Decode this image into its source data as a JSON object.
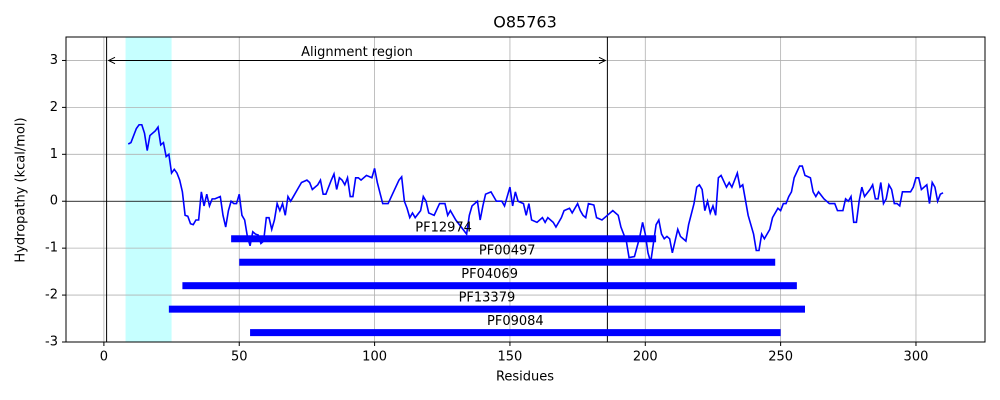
{
  "chart_data": {
    "type": "line",
    "title": "O85763",
    "x_label": "Residues",
    "y_label": "Hydropathy (kcal/mol)",
    "x": [
      9,
      10,
      12,
      13,
      14,
      15,
      16,
      17,
      19,
      20,
      21,
      22,
      23,
      24,
      25,
      26,
      27,
      28,
      29,
      30,
      31,
      32,
      33,
      34,
      35,
      36,
      37,
      38,
      39,
      40,
      41,
      43,
      44,
      45,
      46,
      47,
      48,
      49,
      50,
      51,
      52,
      53,
      54,
      55,
      56,
      57,
      58,
      59,
      60,
      61,
      62,
      63,
      64,
      65,
      66,
      67,
      68,
      69,
      70,
      72,
      73,
      75,
      76,
      77,
      79,
      80,
      81,
      82,
      84,
      85,
      86,
      87,
      88,
      89,
      90,
      91,
      92,
      93,
      94,
      95,
      97,
      99,
      100,
      101,
      103,
      105,
      107,
      109,
      110,
      111,
      112,
      113,
      114,
      115,
      117,
      118,
      119,
      120,
      122,
      124,
      126,
      127,
      128,
      130,
      132,
      134,
      135,
      136,
      138,
      139,
      140,
      141,
      143,
      145,
      147,
      148,
      150,
      151,
      152,
      153,
      155,
      156,
      157,
      158,
      160,
      162,
      163,
      164,
      166,
      167,
      169,
      170,
      172,
      173,
      175,
      176,
      177,
      178,
      179,
      181,
      182,
      184,
      186,
      188,
      190,
      191,
      193,
      194,
      196,
      198,
      199,
      200,
      201,
      202,
      203,
      204,
      205,
      206,
      207,
      208,
      209,
      210,
      212,
      213,
      214,
      215,
      216,
      218,
      219,
      220,
      221,
      222,
      223,
      224,
      225,
      226,
      227,
      228,
      230,
      231,
      232,
      233,
      234,
      235,
      236,
      238,
      239,
      240,
      241,
      242,
      243,
      244,
      246,
      247,
      249,
      250,
      251,
      252,
      253,
      254,
      255,
      257,
      258,
      259,
      261,
      262,
      263,
      264,
      266,
      268,
      270,
      271,
      273,
      274,
      275,
      276,
      277,
      278,
      279,
      280,
      281,
      283,
      284,
      285,
      286,
      287,
      288,
      289,
      290,
      291,
      292,
      293,
      294,
      295,
      297,
      298,
      299,
      300,
      301,
      302,
      304,
      305,
      306,
      307,
      308,
      309,
      310
    ],
    "series": [
      {
        "color": "#0000ff",
        "values": [
          1.22,
          1.25,
          1.55,
          1.63,
          1.63,
          1.45,
          1.08,
          1.4,
          1.5,
          1.58,
          1.2,
          1.25,
          0.95,
          1.0,
          0.6,
          0.68,
          0.6,
          0.45,
          0.2,
          -0.3,
          -0.32,
          -0.48,
          -0.5,
          -0.4,
          -0.4,
          0.2,
          -0.1,
          0.15,
          -0.1,
          0.05,
          0.05,
          0.1,
          -0.3,
          -0.55,
          -0.2,
          0.0,
          -0.05,
          -0.05,
          0.15,
          -0.3,
          -0.4,
          -0.75,
          -0.95,
          -0.65,
          -0.7,
          -0.72,
          -0.9,
          -0.85,
          -0.35,
          -0.35,
          -0.6,
          -0.4,
          -0.05,
          -0.2,
          -0.05,
          -0.3,
          0.1,
          0.0,
          0.1,
          0.3,
          0.4,
          0.45,
          0.4,
          0.25,
          0.35,
          0.45,
          0.15,
          0.15,
          0.45,
          0.58,
          0.25,
          0.5,
          0.45,
          0.35,
          0.5,
          0.1,
          0.1,
          0.5,
          0.5,
          0.45,
          0.55,
          0.5,
          0.7,
          0.4,
          -0.05,
          -0.05,
          0.2,
          0.45,
          0.52,
          0.0,
          -0.15,
          -0.35,
          -0.25,
          -0.35,
          -0.2,
          0.1,
          0.0,
          -0.25,
          -0.3,
          -0.05,
          -0.05,
          -0.3,
          -0.2,
          -0.4,
          -0.55,
          -0.7,
          -0.3,
          -0.1,
          0.0,
          -0.4,
          -0.1,
          0.15,
          0.2,
          0.0,
          0.0,
          -0.1,
          0.3,
          -0.1,
          0.2,
          0.0,
          -0.05,
          -0.3,
          -0.05,
          -0.4,
          -0.45,
          -0.35,
          -0.45,
          -0.35,
          -0.45,
          -0.55,
          -0.35,
          -0.2,
          -0.15,
          -0.25,
          -0.05,
          -0.2,
          -0.3,
          -0.35,
          -0.05,
          -0.08,
          -0.35,
          -0.4,
          -0.3,
          -0.2,
          -0.3,
          -0.55,
          -0.85,
          -1.2,
          -1.18,
          -0.75,
          -0.45,
          -0.7,
          -1.1,
          -1.3,
          -0.9,
          -0.5,
          -0.4,
          -0.7,
          -0.8,
          -0.75,
          -0.8,
          -1.1,
          -0.6,
          -0.75,
          -0.8,
          -0.85,
          -0.5,
          -0.05,
          0.3,
          0.35,
          0.25,
          -0.2,
          0.0,
          -0.25,
          -0.1,
          -0.3,
          0.5,
          0.55,
          0.3,
          0.4,
          0.3,
          0.45,
          0.6,
          0.3,
          0.35,
          -0.3,
          -0.5,
          -0.7,
          -1.05,
          -1.05,
          -0.7,
          -0.8,
          -0.6,
          -0.35,
          -0.15,
          -0.2,
          -0.05,
          -0.05,
          0.1,
          0.2,
          0.5,
          0.75,
          0.75,
          0.55,
          0.5,
          0.2,
          0.1,
          0.2,
          0.05,
          -0.05,
          -0.05,
          -0.2,
          -0.2,
          0.05,
          0.0,
          0.1,
          -0.45,
          -0.45,
          0.0,
          0.3,
          0.1,
          0.25,
          0.35,
          0.05,
          0.05,
          0.4,
          -0.05,
          0.05,
          0.35,
          0.25,
          -0.05,
          -0.05,
          -0.1,
          0.2,
          0.2,
          0.2,
          0.3,
          0.5,
          0.5,
          0.25,
          0.35,
          -0.05,
          0.4,
          0.3,
          0.0,
          0.15,
          0.18
        ]
      }
    ],
    "xlim": [
      -14,
      325.5
    ],
    "ylim": [
      -3,
      3.5
    ],
    "xticks": [
      0,
      50,
      100,
      150,
      200,
      250,
      300
    ],
    "yticks": [
      -3,
      -2,
      -1,
      0,
      1,
      2,
      3
    ],
    "grid": true,
    "zero_line": 0,
    "shaded_region": {
      "start": 8,
      "end": 25,
      "color": "#c6ffff"
    },
    "alignment_region": {
      "start": 1,
      "end": 186,
      "y": 3,
      "label": "Alignment region"
    },
    "domain_color": "#0000ff",
    "domains": [
      {
        "name": "PF12974",
        "start": 47,
        "end": 204,
        "y": -0.8
      },
      {
        "name": "PF00497",
        "start": 50,
        "end": 248,
        "y": -1.3
      },
      {
        "name": "PF04069",
        "start": 29,
        "end": 256,
        "y": -1.8
      },
      {
        "name": "PF13379",
        "start": 24,
        "end": 259,
        "y": -2.3
      },
      {
        "name": "PF09084",
        "start": 54,
        "end": 250,
        "y": -2.8
      }
    ]
  }
}
